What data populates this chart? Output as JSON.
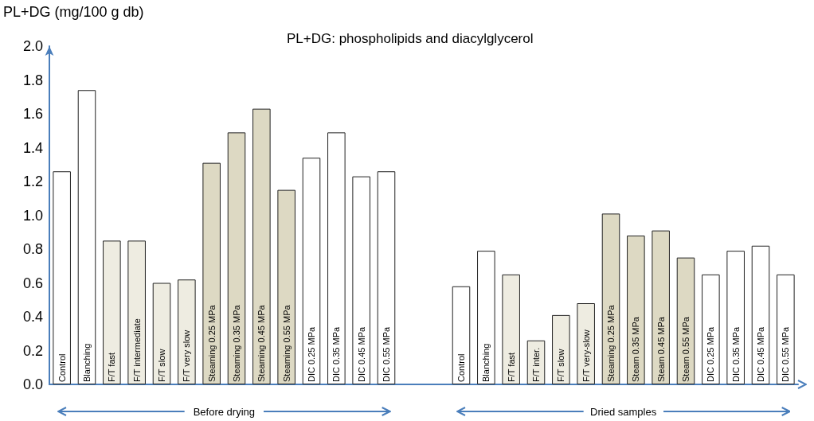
{
  "chart_data": {
    "type": "bar",
    "ylabel": "PL+DG (mg/100 g db)",
    "annotations": [
      "PL+DG: phospholipids and diacylglycerol",
      "Before drying",
      "Dried samples"
    ],
    "categories": [
      "Control",
      "Blanching",
      "F/T fast",
      "F/T intermediate",
      "F/T slow",
      "F/T very slow",
      "Steaming 0.25 MPa",
      "Steaming 0.35 MPa",
      "Steaming 0.45 MPa",
      "Steaming 0.55 MPa",
      "DIC 0.25 MPa",
      "DIC 0.35 MPa",
      "DIC 0.45 MPa",
      "DIC 0.55 MPa",
      null,
      null,
      "Control",
      "Blanching",
      "F/T fast",
      "F/T inter.",
      "F/T slow",
      "F/T very-slow",
      "Steaming 0.25 MPa",
      "Steam 0.35 MPa",
      "Steam 0.45 MPa",
      "Steam 0.55 MPa",
      "DIC 0.25 MPa",
      "DIC 0.35 MPa",
      "DIC 0.45 MPa",
      "DIC 0.55 MPa"
    ],
    "values": [
      1.26,
      1.74,
      0.85,
      0.85,
      0.6,
      0.62,
      1.31,
      1.49,
      1.63,
      1.15,
      1.34,
      1.49,
      1.23,
      1.26,
      null,
      null,
      0.58,
      0.79,
      0.65,
      0.26,
      0.41,
      0.48,
      1.01,
      0.88,
      0.91,
      0.75,
      0.65,
      0.79,
      0.82,
      0.65
    ],
    "colors": [
      "#ffffff",
      "#ffffff",
      "#eeece1",
      "#eeece1",
      "#eeece1",
      "#eeece1",
      "#ddd9c3",
      "#ddd9c3",
      "#ddd9c3",
      "#ddd9c3",
      "#ffffff",
      "#ffffff",
      "#ffffff",
      "#ffffff",
      "#ffffff",
      "#ffffff",
      "#ffffff",
      "#ffffff",
      "#eeece1",
      "#eeece1",
      "#eeece1",
      "#eeece1",
      "#ddd9c3",
      "#ddd9c3",
      "#ddd9c3",
      "#ddd9c3",
      "#ffffff",
      "#ffffff",
      "#ffffff",
      "#ffffff"
    ],
    "ylim": [
      0,
      2
    ],
    "yticks": [
      {
        "value": 0,
        "label": "0.0"
      },
      0.2,
      0.4,
      0.6,
      0.8,
      {
        "value": 1,
        "label": "1.0"
      },
      1.2,
      1.4,
      1.6,
      1.8,
      {
        "value": 2,
        "label": "2.0"
      }
    ],
    "grid": false
  }
}
